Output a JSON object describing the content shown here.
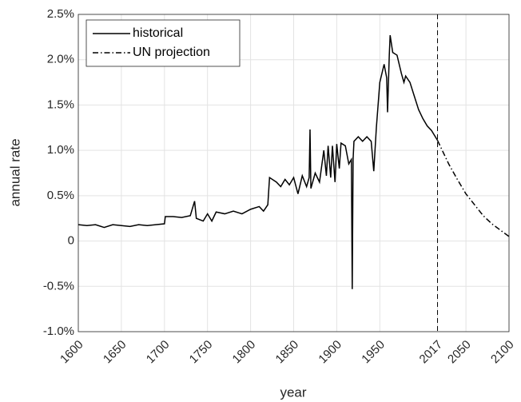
{
  "chart_data": {
    "type": "line",
    "xlabel": "year",
    "ylabel": "annual rate",
    "xlim": [
      1600,
      2100
    ],
    "xticks": [
      1600,
      1650,
      1700,
      1750,
      1800,
      1850,
      1900,
      1950,
      2017,
      2050,
      2100
    ],
    "ylim": [
      -1,
      2.5
    ],
    "yticks": [
      {
        "value": -1,
        "label": "-1.0%"
      },
      {
        "value": -0.5,
        "label": "-0.5%"
      },
      0,
      {
        "value": 0.5,
        "label": "0.5%"
      },
      {
        "value": 1,
        "label": "1.0%"
      },
      {
        "value": 1.5,
        "label": "1.5%"
      },
      {
        "value": 2,
        "label": "2.0%"
      },
      {
        "value": 2.5,
        "label": "2.5%"
      }
    ],
    "grid": true,
    "legend": "upper left",
    "vline": 2017,
    "vline_style": "dashed",
    "series": [
      {
        "name": "historical",
        "color": "#000000",
        "style": "solid",
        "x": [
          1600,
          1610,
          1620,
          1630,
          1640,
          1650,
          1660,
          1670,
          1680,
          1690,
          1700,
          1701,
          1710,
          1720,
          1730,
          1735,
          1737,
          1745,
          1750,
          1755,
          1760,
          1770,
          1780,
          1790,
          1800,
          1810,
          1815,
          1820,
          1822,
          1830,
          1835,
          1840,
          1845,
          1850,
          1855,
          1860,
          1865,
          1868,
          1869,
          1870,
          1875,
          1880,
          1885,
          1888,
          1890,
          1893,
          1895,
          1898,
          1900,
          1903,
          1905,
          1910,
          1914,
          1917,
          1918,
          1919,
          1920,
          1925,
          1930,
          1935,
          1940,
          1943,
          1946,
          1950,
          1955,
          1958,
          1959,
          1961,
          1962,
          1965,
          1970,
          1975,
          1978,
          1980,
          1985,
          1990,
          1995,
          2000,
          2005,
          2010,
          2017
        ],
        "values": [
          0.18,
          0.17,
          0.18,
          0.15,
          0.18,
          0.17,
          0.16,
          0.18,
          0.17,
          0.18,
          0.19,
          0.27,
          0.27,
          0.26,
          0.28,
          0.44,
          0.25,
          0.22,
          0.3,
          0.22,
          0.32,
          0.3,
          0.33,
          0.3,
          0.35,
          0.38,
          0.33,
          0.4,
          0.7,
          0.65,
          0.6,
          0.68,
          0.62,
          0.7,
          0.52,
          0.72,
          0.6,
          0.7,
          1.23,
          0.58,
          0.75,
          0.65,
          1.0,
          0.72,
          1.05,
          0.7,
          1.05,
          0.65,
          1.07,
          0.8,
          1.08,
          1.05,
          0.85,
          0.9,
          -0.53,
          0.9,
          1.1,
          1.15,
          1.1,
          1.15,
          1.1,
          0.77,
          1.25,
          1.75,
          1.95,
          1.8,
          1.42,
          2.05,
          2.27,
          2.08,
          2.05,
          1.85,
          1.75,
          1.82,
          1.75,
          1.6,
          1.45,
          1.35,
          1.27,
          1.22,
          1.11
        ]
      },
      {
        "name": "UN projection",
        "color": "#000000",
        "style": "dashdot",
        "x": [
          2017,
          2030,
          2040,
          2050,
          2060,
          2070,
          2080,
          2090,
          2100
        ],
        "values": [
          1.11,
          0.85,
          0.68,
          0.52,
          0.4,
          0.28,
          0.19,
          0.12,
          0.05
        ]
      }
    ]
  }
}
